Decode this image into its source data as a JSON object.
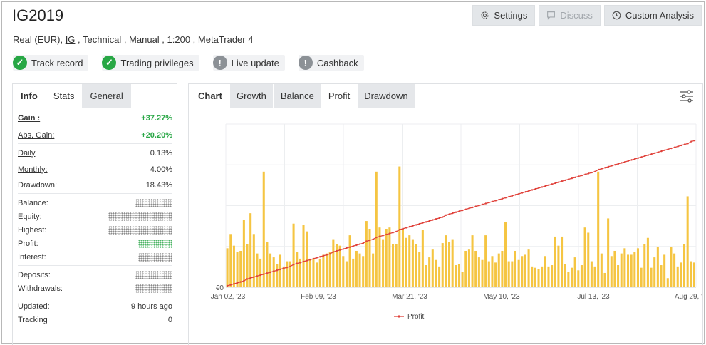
{
  "header": {
    "title": "IG2019",
    "subtitle_prefix": "Real (EUR), ",
    "subtitle_broker": "IG",
    "subtitle_suffix": " , Technical , Manual , 1:200 , MetaTrader 4",
    "buttons": {
      "settings": "Settings",
      "discuss": "Discuss",
      "custom_analysis": "Custom Analysis"
    }
  },
  "badges": [
    {
      "label": "Track record",
      "icon": "check-icon",
      "color": "#28a745"
    },
    {
      "label": "Trading privileges",
      "icon": "check-icon",
      "color": "#28a745"
    },
    {
      "label": "Live update",
      "icon": "exclamation-icon",
      "color": "#8c9196"
    },
    {
      "label": "Cashback",
      "icon": "exclamation-icon",
      "color": "#8c9196"
    }
  ],
  "left_tabs": {
    "info": "Info",
    "stats": "Stats",
    "general": "General"
  },
  "stats": {
    "gain_label": "Gain :",
    "gain_value": "+37.27%",
    "abs_gain_label": "Abs. Gain:",
    "abs_gain_value": "+20.20%",
    "daily_label": "Daily",
    "daily_value": "0.13%",
    "monthly_label": "Monthly:",
    "monthly_value": "4.00%",
    "drawdown_label": "Drawdown:",
    "drawdown_value": "18.43%",
    "balance_label": "Balance:",
    "equity_label": "Equity:",
    "highest_label": "Highest:",
    "profit_label": "Profit:",
    "interest_label": "Interest:",
    "deposits_label": "Deposits:",
    "withdrawals_label": "Withdrawals:",
    "updated_label": "Updated:",
    "updated_value": "9 hours ago",
    "tracking_label": "Tracking",
    "tracking_value": "0"
  },
  "chart_tabs": {
    "chart": "Chart",
    "growth": "Growth",
    "balance": "Balance",
    "profit": "Profit",
    "drawdown": "Drawdown"
  },
  "colors": {
    "bar": "#f5c542",
    "line": "#e0413a",
    "green": "#28a745"
  },
  "chart_data": {
    "type": "bar",
    "y_tick_label": "€0",
    "x_tick_labels": [
      "Jan 02, '23",
      "Feb 09, '23",
      "Mar 21, '23",
      "May 10, '23",
      "Jul 13, '23",
      "Aug 29, '23"
    ],
    "legend": "Profit",
    "bar_values": [
      30,
      41,
      32,
      27,
      28,
      52,
      33,
      57,
      41,
      26,
      22,
      89,
      35,
      26,
      23,
      18,
      25,
      16,
      20,
      20,
      49,
      27,
      22,
      48,
      43,
      22,
      22,
      19,
      22,
      25,
      26,
      27,
      37,
      33,
      32,
      24,
      20,
      40,
      22,
      28,
      26,
      24,
      51,
      45,
      26,
      89,
      46,
      37,
      45,
      46,
      33,
      33,
      93,
      45,
      38,
      40,
      37,
      33,
      27,
      44,
      17,
      23,
      29,
      21,
      16,
      34,
      40,
      35,
      37,
      17,
      18,
      12,
      28,
      29,
      40,
      28,
      23,
      21,
      40,
      20,
      24,
      19,
      26,
      28,
      50,
      20,
      20,
      28,
      21,
      24,
      25,
      29,
      16,
      15,
      14,
      16,
      24,
      16,
      17,
      39,
      32,
      39,
      18,
      12,
      15,
      23,
      13,
      17,
      46,
      42,
      20,
      16,
      89,
      26,
      11,
      53,
      24,
      28,
      17,
      26,
      30,
      25,
      25,
      27,
      30,
      15,
      33,
      38,
      15,
      23,
      31,
      17,
      25,
      7,
      31,
      26,
      16,
      19,
      33,
      70,
      20,
      19
    ],
    "line_values": [
      0,
      1,
      2,
      3,
      4,
      5,
      7,
      8,
      9,
      10,
      11,
      12,
      13,
      14,
      15,
      16,
      17,
      18,
      19,
      20,
      22,
      23,
      24,
      25,
      26,
      27,
      28,
      29,
      30,
      31,
      32,
      33,
      35,
      36,
      37,
      38,
      39,
      40,
      41,
      42,
      43,
      44,
      46,
      47,
      48,
      50,
      51,
      52,
      53,
      54,
      55,
      56,
      58,
      59,
      60,
      61,
      62,
      63,
      64,
      65,
      66,
      67,
      68,
      69,
      70,
      71,
      73,
      74,
      75,
      76,
      77,
      78,
      79,
      80,
      81,
      82,
      83,
      84,
      85,
      86,
      87,
      88,
      89,
      90,
      91,
      92,
      93,
      94,
      95,
      96,
      97,
      98,
      99,
      100,
      101,
      102,
      103,
      104,
      105,
      106,
      107,
      108,
      109,
      110,
      111,
      112,
      113,
      114,
      115,
      116,
      117,
      118,
      120,
      121,
      122,
      123,
      124,
      125,
      126,
      127,
      128,
      129,
      130,
      131,
      132,
      133,
      134,
      135,
      136,
      137,
      138,
      139,
      140,
      141,
      142,
      143,
      144,
      145,
      146,
      147,
      149,
      150
    ]
  }
}
